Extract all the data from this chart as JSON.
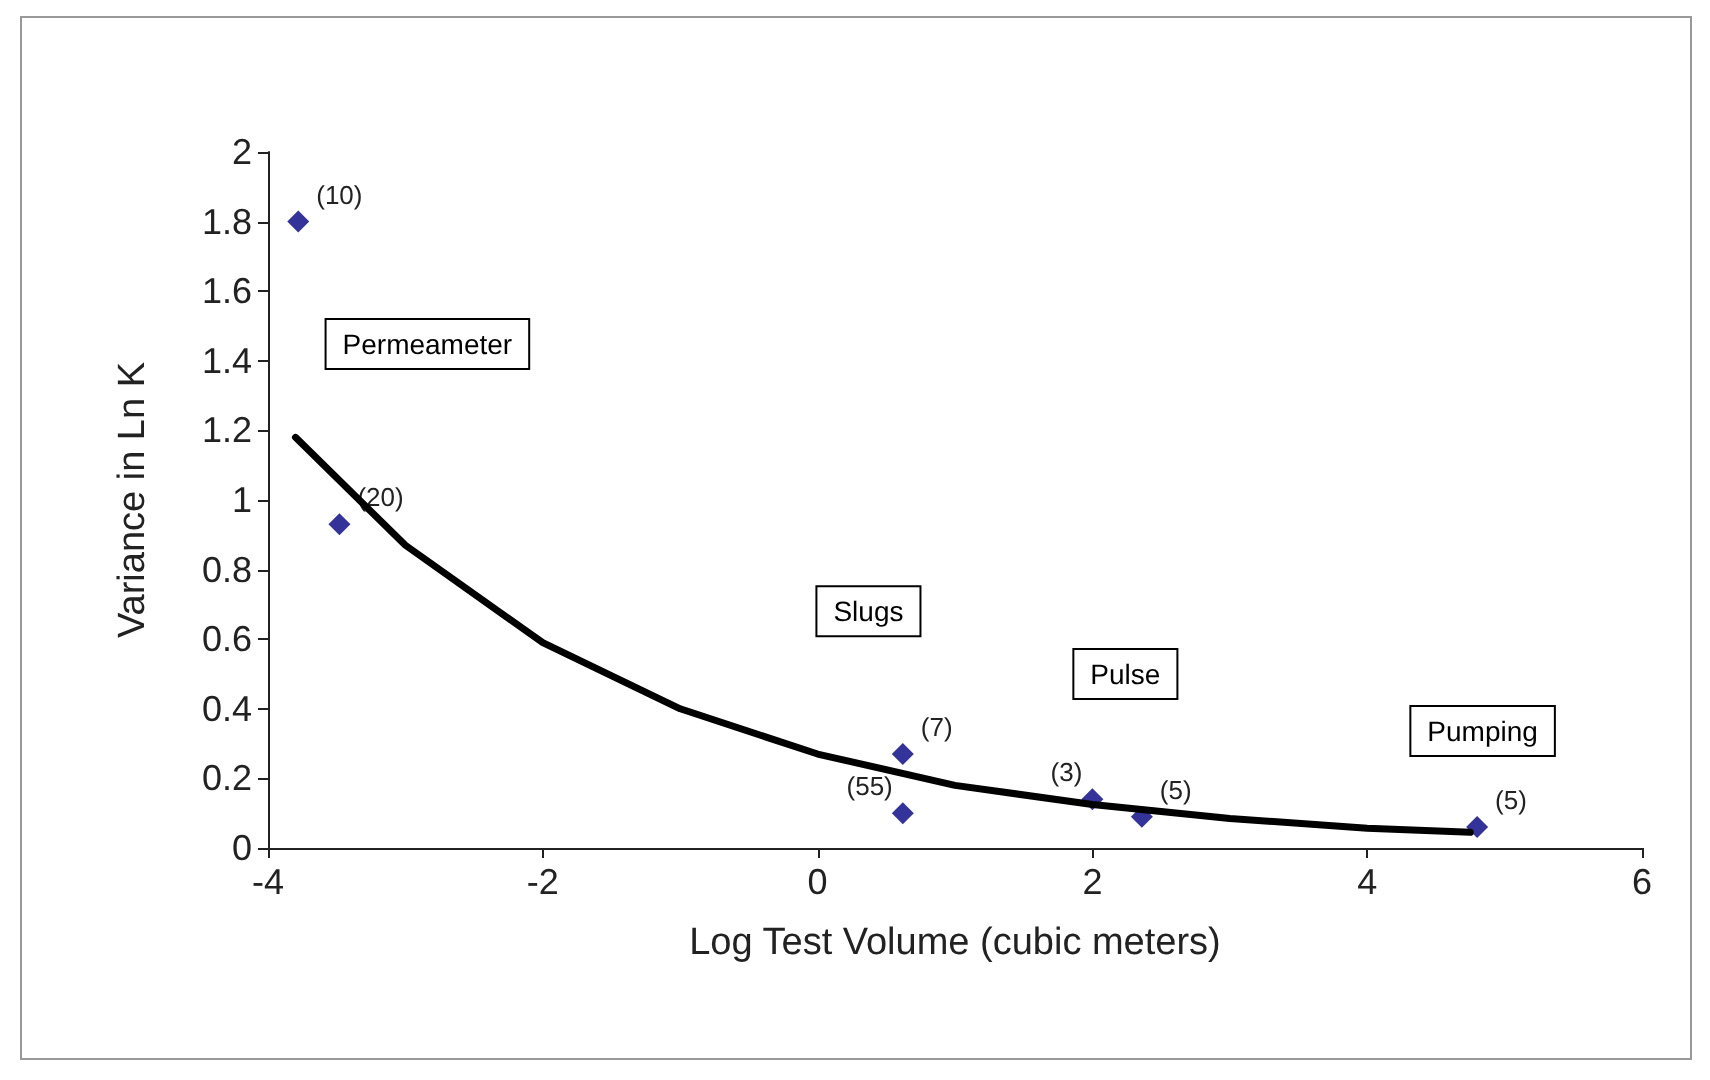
{
  "chart_data": {
    "type": "scatter",
    "xlabel": "Log Test Volume (cubic meters)",
    "ylabel": "Variance in Ln K",
    "series": [
      {
        "color": "#000080",
        "marker": "diamond",
        "x": [
          -3.78,
          -3.48,
          0.62,
          0.62,
          2.0,
          2.36,
          4.8
        ],
        "values": [
          1.8,
          0.93,
          0.27,
          0.1,
          0.14,
          0.09,
          0.06
        ]
      },
      {
        "type": "line",
        "color": "#000000",
        "marker": "none",
        "x": [
          -3.8,
          -3,
          -2,
          -1,
          0,
          1,
          2,
          3,
          4,
          4.75
        ],
        "values": [
          1.18,
          0.87,
          0.59,
          0.4,
          0.27,
          0.18,
          0.125,
          0.085,
          0.057,
          0.045
        ]
      }
    ],
    "xlim": [
      -4,
      6
    ],
    "xticks": [
      -4,
      -2,
      0,
      2,
      4,
      6
    ],
    "ylim": [
      0,
      2
    ],
    "yticks": [
      0,
      0.2,
      0.4,
      0.6,
      0.8,
      1,
      1.2,
      1.4,
      1.6,
      1.8,
      2
    ],
    "grid": false,
    "annotations": [
      {
        "text": "(10)",
        "x": -3.78,
        "y": 1.8
      },
      {
        "text": "(20)",
        "x": -3.48,
        "y": 0.93
      },
      {
        "text": "(7)",
        "x": 0.62,
        "y": 0.27
      },
      {
        "text": "(55)",
        "x": 0.62,
        "y": 0.1
      },
      {
        "text": "(3)",
        "x": 2.0,
        "y": 0.14
      },
      {
        "text": "(5)",
        "x": 2.36,
        "y": 0.09
      },
      {
        "text": "(5)",
        "x": 4.8,
        "y": 0.06
      },
      "Permeameter",
      "Slugs",
      "Pulse",
      "Pumping"
    ]
  }
}
